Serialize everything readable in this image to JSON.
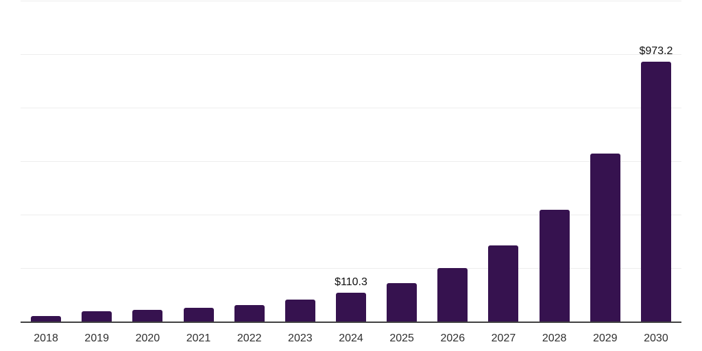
{
  "chart_data": {
    "type": "bar",
    "title": "",
    "xlabel": "",
    "ylabel": "",
    "categories": [
      "2018",
      "2019",
      "2020",
      "2021",
      "2022",
      "2023",
      "2024",
      "2025",
      "2026",
      "2027",
      "2028",
      "2029",
      "2030"
    ],
    "values": [
      23,
      40,
      46,
      53,
      63,
      84,
      110.3,
      145,
      202,
      286,
      420,
      630,
      973.2
    ],
    "annotations": [
      {
        "category": "2024",
        "text": "$110.3"
      },
      {
        "category": "2030",
        "text": "$973.2"
      }
    ],
    "ylim": [
      0,
      1200
    ],
    "gridline_interval": 200,
    "grid": true,
    "legend": false,
    "y_axis_labels_visible": false,
    "colors": {
      "bar": "#36124F",
      "gridline": "#ededed",
      "axis_line": "#404040",
      "tick_label": "#2f2f2f",
      "annotation": "#0f0f0f"
    }
  }
}
